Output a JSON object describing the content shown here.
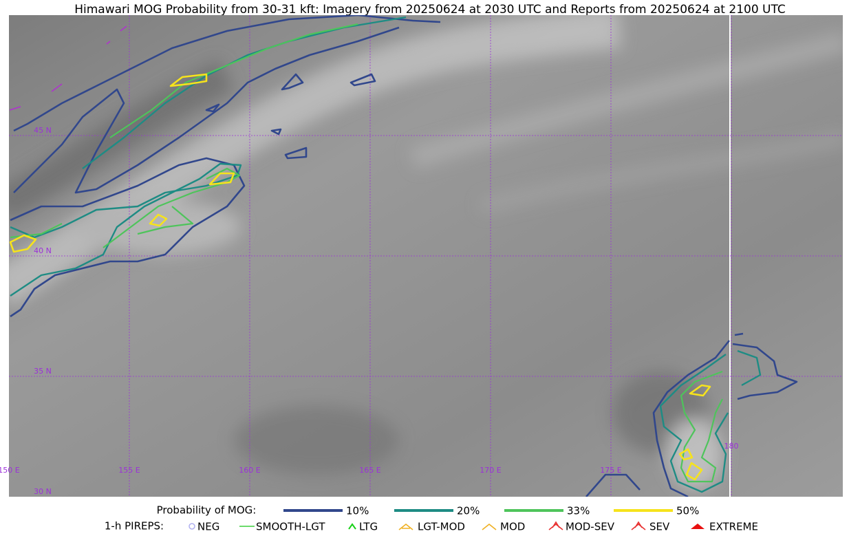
{
  "header": {
    "title": "Himawari MOG Probability from 30-31 kft: Imagery from 20250624 at 2030 UTC and Reports from 20250624 at 2100 UTC"
  },
  "map": {
    "lat_labels": [
      "45 N",
      "40 N",
      "35 N",
      "30 N"
    ],
    "lon_labels": [
      "150 E",
      "155 E",
      "160 E",
      "165 E",
      "170 E",
      "175 E",
      "180"
    ]
  },
  "legend": {
    "probability": {
      "title": "Probability of MOG:",
      "items": [
        {
          "label": "10%",
          "color": "#31478c"
        },
        {
          "label": "20%",
          "color": "#1e8c84"
        },
        {
          "label": "33%",
          "color": "#4ec45b"
        },
        {
          "label": "50%",
          "color": "#f6e31c"
        }
      ]
    },
    "pireps": {
      "title": "1-h PIREPS:",
      "items": [
        {
          "label": "NEG",
          "color": "#b0b0f0"
        },
        {
          "label": "SMOOTH-LGT",
          "color": "#3ccf3c"
        },
        {
          "label": "LTG",
          "color": "#18d018"
        },
        {
          "label": "LGT-MOD",
          "color": "#f0b020"
        },
        {
          "label": "MOD",
          "color": "#f0b020"
        },
        {
          "label": "MOD-SEV",
          "color": "#e83030"
        },
        {
          "label": "SEV",
          "color": "#e83030"
        },
        {
          "label": "EXTREME",
          "color": "#e81010"
        }
      ]
    }
  }
}
